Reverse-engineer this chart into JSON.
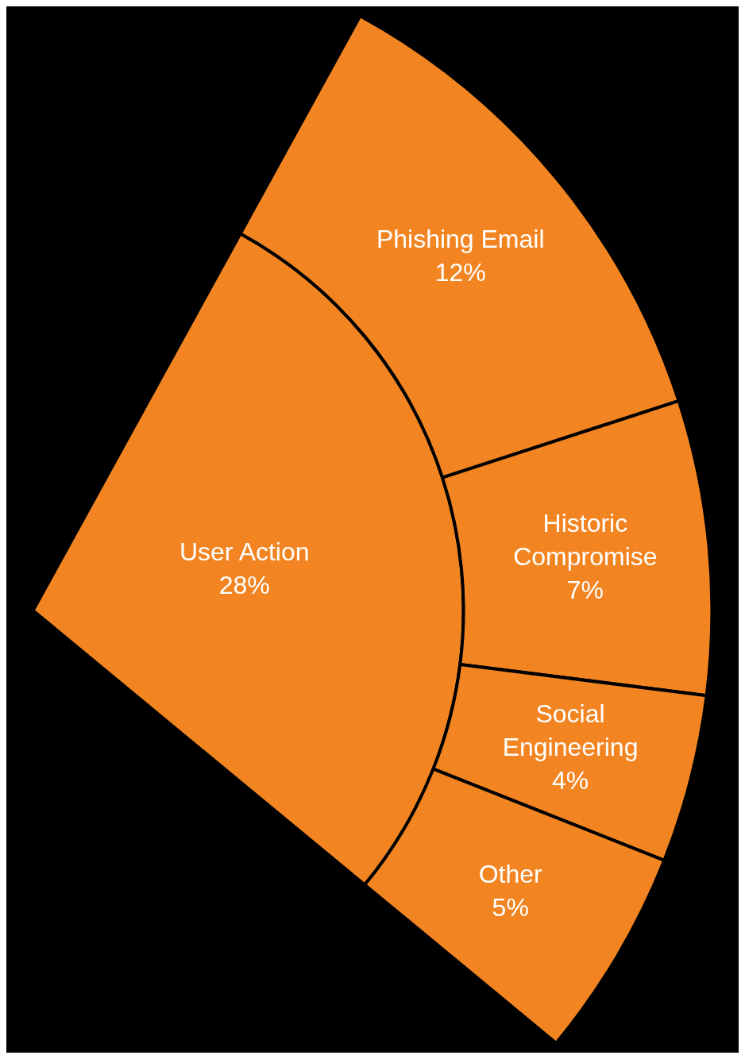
{
  "chart_data": {
    "type": "other",
    "categories": [
      "User Action",
      "Phishing Email",
      "Historic Compromise",
      "Social Engineering",
      "Other"
    ],
    "series": [
      {
        "color": "#f28522",
        "values": [
          28,
          null,
          null,
          null,
          null
        ],
        "value_labels": [
          "28%",
          null,
          null,
          null,
          null
        ]
      },
      {
        "color": "#f28522",
        "values": [
          null,
          12,
          7,
          4,
          5
        ],
        "value_labels": [
          null,
          "12%",
          "7%",
          "4%",
          "5%"
        ]
      }
    ]
  }
}
